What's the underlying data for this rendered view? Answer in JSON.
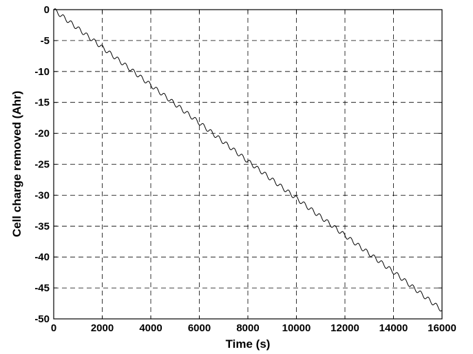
{
  "chart_data": {
    "type": "line",
    "title": "",
    "xlabel": "Time (s)",
    "ylabel": "Cell charge removed (Ahr)",
    "xlim": [
      0,
      16000
    ],
    "ylim": [
      -50,
      0
    ],
    "xticks": [
      0,
      2000,
      4000,
      6000,
      8000,
      10000,
      12000,
      14000,
      16000
    ],
    "yticks": [
      0,
      -5,
      -10,
      -15,
      -20,
      -25,
      -30,
      -35,
      -40,
      -45,
      -50
    ],
    "grid": "dashed",
    "legend": "none",
    "series": [
      {
        "color": "#000000",
        "x": [
          0,
          2000,
          4000,
          6000,
          8000,
          10000,
          12000,
          14000,
          16000
        ],
        "y": [
          0,
          -6.1,
          -12.2,
          -18.3,
          -24.5,
          -30.5,
          -36.5,
          -42.4,
          -48.6
        ],
        "oscillation": {
          "period_s": 320,
          "amplitude_ahr": 0.35
        }
      }
    ]
  }
}
